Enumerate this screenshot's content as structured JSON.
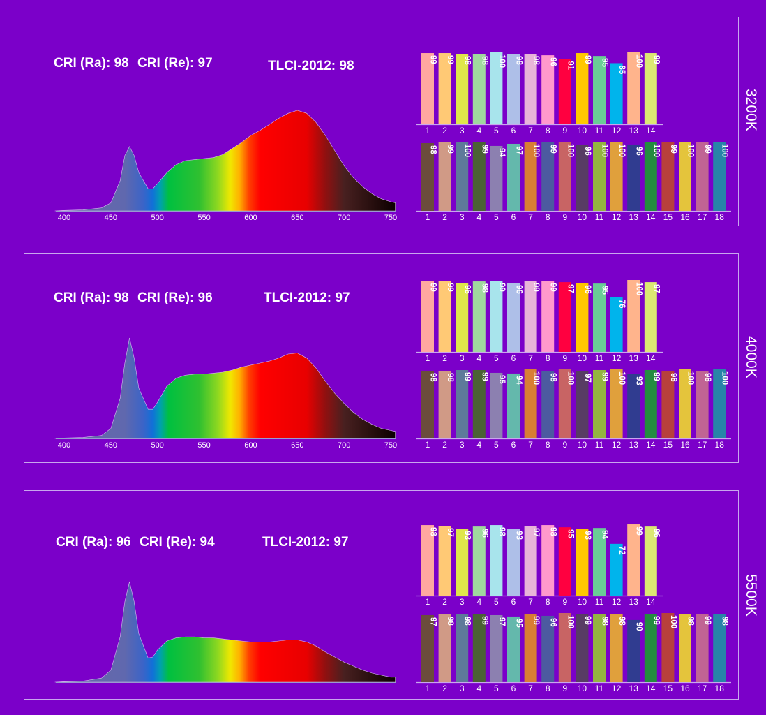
{
  "colors": {
    "background": "#7b00c9",
    "panel_border": "#c9a6ee",
    "axis": "#c9a6ee",
    "text": "#ffffff"
  },
  "chart_data": [
    {
      "cct_label": "3200K",
      "cri_ra_label": "CRI (Ra): 98",
      "cri_re_label": "CRI (Re): 97",
      "tlci_label": "TLCI-2012: 98",
      "spectrum": {
        "type": "area",
        "x": [
          390,
          400,
          420,
          440,
          450,
          460,
          465,
          470,
          475,
          480,
          490,
          495,
          500,
          510,
          520,
          530,
          540,
          550,
          560,
          570,
          580,
          590,
          600,
          610,
          620,
          630,
          640,
          650,
          660,
          670,
          680,
          690,
          700,
          710,
          720,
          730,
          740,
          750,
          755
        ],
        "y": [
          0,
          0.005,
          0.01,
          0.03,
          0.08,
          0.3,
          0.55,
          0.64,
          0.55,
          0.38,
          0.22,
          0.22,
          0.27,
          0.38,
          0.46,
          0.5,
          0.51,
          0.52,
          0.53,
          0.56,
          0.62,
          0.68,
          0.75,
          0.8,
          0.86,
          0.92,
          0.97,
          1.0,
          0.97,
          0.88,
          0.75,
          0.6,
          0.45,
          0.33,
          0.24,
          0.17,
          0.12,
          0.09,
          0.08
        ],
        "xticks": [
          "400",
          "450",
          "500",
          "550",
          "600",
          "650",
          "700",
          "750"
        ],
        "xlim": [
          390,
          755
        ],
        "fill": "wavelength-gradient"
      },
      "tcs": {
        "type": "bar",
        "categories": [
          "1",
          "2",
          "3",
          "4",
          "5",
          "6",
          "7",
          "8",
          "9",
          "10",
          "11",
          "12",
          "13",
          "14"
        ],
        "values": [
          99,
          99,
          98,
          98,
          100,
          98,
          98,
          96,
          91,
          99,
          95,
          85,
          100,
          99
        ]
      },
      "tlci": {
        "type": "bar",
        "categories": [
          "1",
          "2",
          "3",
          "4",
          "5",
          "6",
          "7",
          "8",
          "9",
          "10",
          "11",
          "12",
          "13",
          "14",
          "15",
          "16",
          "17",
          "18"
        ],
        "values": [
          98,
          99,
          100,
          99,
          94,
          97,
          100,
          99,
          100,
          96,
          100,
          100,
          96,
          100,
          99,
          100,
          99,
          100
        ]
      }
    },
    {
      "cct_label": "4000K",
      "cri_ra_label": "CRI (Ra): 98",
      "cri_re_label": "CRI (Re): 96",
      "tlci_label": "TLCI-2012: 97",
      "spectrum": {
        "type": "area",
        "x": [
          390,
          400,
          420,
          440,
          450,
          460,
          465,
          470,
          475,
          480,
          490,
          495,
          500,
          510,
          520,
          530,
          540,
          550,
          560,
          570,
          580,
          590,
          600,
          610,
          620,
          630,
          640,
          650,
          660,
          670,
          680,
          690,
          700,
          710,
          720,
          730,
          740,
          750,
          755
        ],
        "y": [
          0,
          0.005,
          0.01,
          0.03,
          0.1,
          0.4,
          0.75,
          1.0,
          0.8,
          0.5,
          0.29,
          0.29,
          0.36,
          0.52,
          0.6,
          0.63,
          0.64,
          0.64,
          0.65,
          0.66,
          0.68,
          0.71,
          0.73,
          0.75,
          0.77,
          0.8,
          0.84,
          0.85,
          0.8,
          0.7,
          0.57,
          0.45,
          0.35,
          0.26,
          0.19,
          0.14,
          0.1,
          0.08,
          0.07
        ],
        "xticks": [
          "400",
          "450",
          "500",
          "550",
          "600",
          "650",
          "700",
          "750"
        ],
        "xlim": [
          390,
          755
        ],
        "fill": "wavelength-gradient"
      },
      "tcs": {
        "type": "bar",
        "categories": [
          "1",
          "2",
          "3",
          "4",
          "5",
          "6",
          "7",
          "8",
          "9",
          "10",
          "11",
          "12",
          "13",
          "14"
        ],
        "values": [
          99,
          99,
          96,
          98,
          99,
          96,
          99,
          99,
          97,
          96,
          95,
          76,
          100,
          97
        ]
      },
      "tlci": {
        "type": "bar",
        "categories": [
          "1",
          "2",
          "3",
          "4",
          "5",
          "6",
          "7",
          "8",
          "9",
          "10",
          "11",
          "12",
          "13",
          "14",
          "15",
          "16",
          "17",
          "18"
        ],
        "values": [
          98,
          98,
          99,
          99,
          95,
          94,
          100,
          98,
          100,
          97,
          99,
          100,
          93,
          99,
          98,
          100,
          98,
          100
        ]
      }
    },
    {
      "cct_label": "5500K",
      "cri_ra_label": "CRI (Ra): 96",
      "cri_re_label": "CRI (Re): 94",
      "tlci_label": "TLCI-2012: 97",
      "spectrum": {
        "type": "area",
        "x": [
          390,
          400,
          420,
          440,
          450,
          460,
          465,
          470,
          475,
          480,
          490,
          495,
          500,
          510,
          520,
          530,
          540,
          550,
          560,
          570,
          580,
          590,
          600,
          610,
          620,
          630,
          640,
          650,
          660,
          670,
          680,
          690,
          700,
          710,
          720,
          730,
          740,
          750,
          755
        ],
        "y": [
          0,
          0.005,
          0.01,
          0.04,
          0.12,
          0.45,
          0.8,
          1.0,
          0.8,
          0.48,
          0.24,
          0.25,
          0.32,
          0.41,
          0.44,
          0.45,
          0.45,
          0.44,
          0.44,
          0.43,
          0.42,
          0.41,
          0.4,
          0.4,
          0.4,
          0.41,
          0.42,
          0.42,
          0.4,
          0.36,
          0.3,
          0.25,
          0.2,
          0.16,
          0.12,
          0.09,
          0.07,
          0.05,
          0.05
        ],
        "xticks": [],
        "xlim": [
          390,
          755
        ],
        "fill": "wavelength-gradient"
      },
      "tcs": {
        "type": "bar",
        "categories": [
          "1",
          "2",
          "3",
          "4",
          "5",
          "6",
          "7",
          "8",
          "9",
          "10",
          "11",
          "12",
          "13",
          "14"
        ],
        "values": [
          98,
          97,
          93,
          96,
          98,
          93,
          97,
          98,
          95,
          93,
          94,
          72,
          99,
          96
        ]
      },
      "tlci": {
        "type": "bar",
        "categories": [
          "1",
          "2",
          "3",
          "4",
          "5",
          "6",
          "7",
          "8",
          "9",
          "10",
          "11",
          "12",
          "13",
          "14",
          "15",
          "16",
          "17",
          "18"
        ],
        "values": [
          97,
          98,
          98,
          99,
          97,
          95,
          99,
          96,
          100,
          99,
          98,
          98,
          90,
          99,
          100,
          98,
          99,
          98
        ]
      }
    }
  ],
  "tcs_colors": [
    "#ffa7a0",
    "#ffc975",
    "#dfe64a",
    "#a0d89e",
    "#a8e4ec",
    "#aebfe8",
    "#e8b4d8",
    "#ff99cc",
    "#ff0040",
    "#ffc800",
    "#6acc96",
    "#00b4ec",
    "#ffb48c",
    "#dce873"
  ],
  "tlci_colors": [
    "#6b4c3c",
    "#d09a86",
    "#5e7a9a",
    "#4b6234",
    "#8c80b0",
    "#64b8ac",
    "#d87e34",
    "#4c5aa0",
    "#c86464",
    "#583c64",
    "#94b440",
    "#e0a03c",
    "#303c90",
    "#248c40",
    "#b8403c",
    "#e4c43c",
    "#c06494",
    "#2884a8"
  ]
}
